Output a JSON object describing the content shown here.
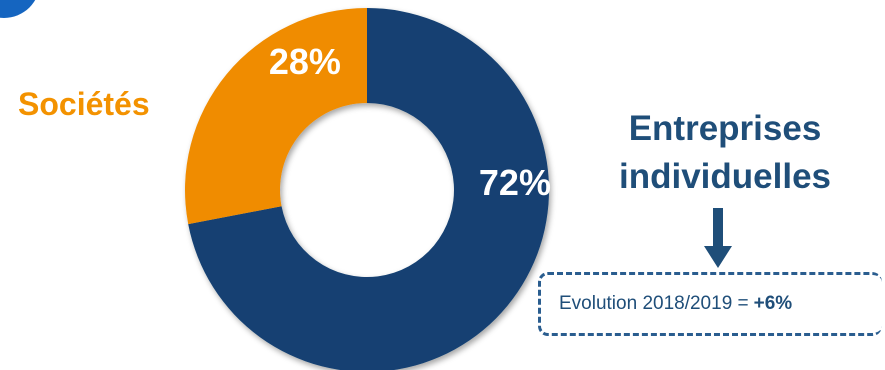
{
  "chart_data": {
    "type": "pie",
    "donut": true,
    "slices": [
      {
        "label": "Entreprises individuelles",
        "value": 72,
        "display": "72%",
        "color": "#124172"
      },
      {
        "label": "Sociétés",
        "value": 28,
        "display": "28%",
        "color": "#f08c00"
      }
    ]
  },
  "labels": {
    "societes": "Sociétés",
    "entreprises_line1": "Entreprises",
    "entreprises_line2": "individuelles"
  },
  "evolution": {
    "text": "Evolution 2018/2019 =",
    "value": "+6%"
  },
  "colors": {
    "navy": "#124172",
    "orange": "#f08c00",
    "label_blue": "#1f4e79",
    "badge_blue": "#1565c0"
  }
}
